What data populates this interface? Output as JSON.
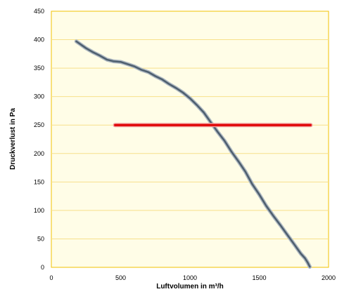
{
  "chart_data": {
    "type": "line",
    "title": "",
    "xlabel": "Luftvolumen in m³/h",
    "ylabel": "Druckverlust in Pa",
    "xlim": [
      0,
      2000
    ],
    "ylim": [
      0,
      450
    ],
    "x_ticks": [
      0,
      500,
      1000,
      1500,
      2000
    ],
    "y_ticks": [
      0,
      50,
      100,
      150,
      200,
      250,
      300,
      350,
      400,
      450
    ],
    "grid": true,
    "legend": "none",
    "colors": {
      "plot_background": "#FFFDE7",
      "plot_border": "#F2C200",
      "gridline": "#F7E08A",
      "fan_curve": "#4E5F6E",
      "fan_curve_shadow": "#AEB8C2",
      "operating_line": "#E00000",
      "operating_line_shadow": "#F09A9A"
    },
    "series": [
      {
        "x": [
          180,
          250,
          300,
          350,
          400,
          450,
          500,
          550,
          600,
          650,
          700,
          750,
          800,
          850,
          900,
          950,
          1000,
          1050,
          1100,
          1150,
          1200,
          1250,
          1300,
          1350,
          1400,
          1450,
          1500,
          1550,
          1600,
          1650,
          1700,
          1750,
          1800,
          1830,
          1850,
          1865
        ],
        "y": [
          397,
          385,
          378,
          372,
          365,
          362,
          361,
          357,
          353,
          347,
          343,
          336,
          330,
          322,
          315,
          307,
          297,
          285,
          272,
          255,
          238,
          222,
          203,
          186,
          168,
          146,
          128,
          108,
          91,
          75,
          58,
          41,
          24,
          16,
          8,
          1
        ]
      },
      {
        "x": [
          460,
          1870
        ],
        "y": [
          250,
          250
        ]
      }
    ]
  }
}
